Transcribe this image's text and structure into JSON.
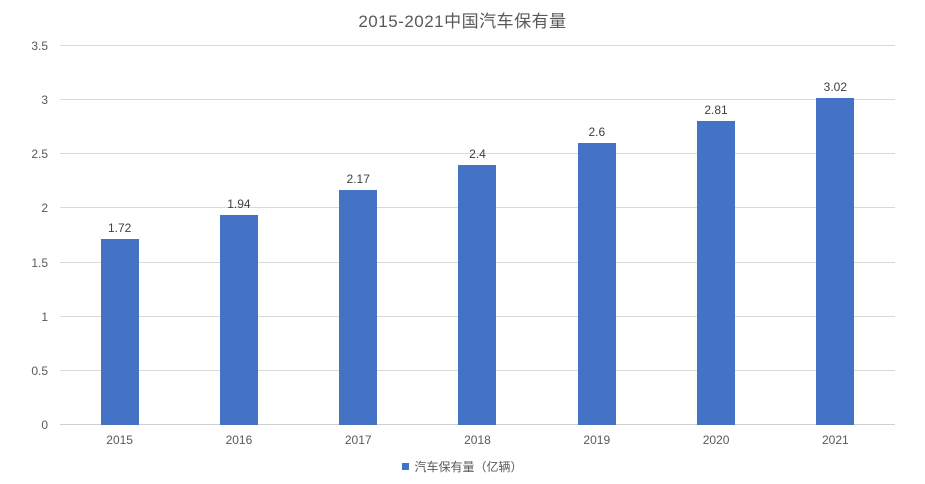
{
  "colors": {
    "bar": "#4472C4",
    "grid": "#D9D9D9",
    "grid_zero": "#CFCFCF",
    "axis_text": "#595959",
    "label_text": "#404040",
    "background": "#FFFFFF"
  },
  "legend": {
    "marker": "square-icon",
    "label": "汽车保有量（亿辆）"
  },
  "chart_data": {
    "type": "bar",
    "title": "2015-2021中国汽车保有量",
    "categories": [
      "2015",
      "2016",
      "2017",
      "2018",
      "2019",
      "2020",
      "2021"
    ],
    "values": [
      1.72,
      1.94,
      2.17,
      2.4,
      2.6,
      2.81,
      3.02
    ],
    "labels": [
      "1.72",
      "1.94",
      "2.17",
      "2.4",
      "2.6",
      "2.81",
      "3.02"
    ],
    "series_name": "汽车保有量（亿辆）",
    "xlabel": "",
    "ylabel": "",
    "ylim": [
      0,
      3.5
    ],
    "yticks": [
      0,
      0.5,
      1,
      1.5,
      2,
      2.5,
      3,
      3.5
    ],
    "grid": true,
    "legend_position": "bottom",
    "data_labels": true
  }
}
